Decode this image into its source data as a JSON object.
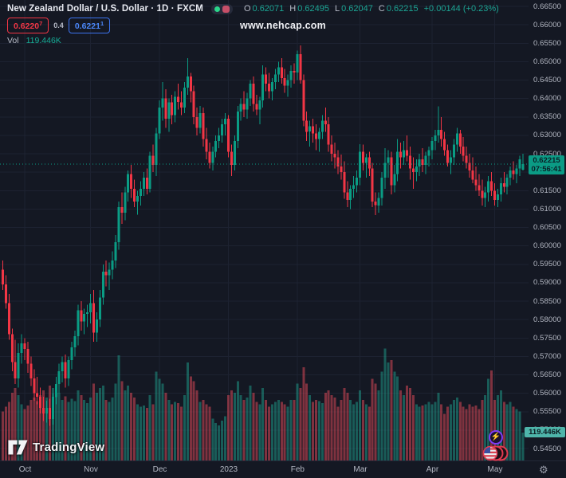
{
  "header": {
    "symbol_title": "New Zealand Dollar / U.S. Dollar · 1D · FXCM",
    "ohlc": {
      "o_label": "O",
      "o": "0.62071",
      "h_label": "H",
      "h": "0.62495",
      "l_label": "L",
      "l": "0.62047",
      "c_label": "C",
      "c": "0.62215",
      "change": "+0.00144 (+0.23%)"
    },
    "bid": {
      "main": "0.6220",
      "sup": "7"
    },
    "spread": "0.4",
    "ask": {
      "main": "0.6221",
      "sup": "1"
    },
    "vol_label": "Vol",
    "vol_value": "119.446K"
  },
  "watermark": "www.nehcap.com",
  "price_label": {
    "price": "0.62215",
    "countdown": "07:56:41"
  },
  "volume_label": "119.446K",
  "footer": {
    "logo": "TradingView",
    "gear_icon": "⚙"
  },
  "colors": {
    "up": "#0a9c84",
    "down": "#f23645",
    "vol_up": "rgba(32,167,146,0.48)",
    "vol_down": "rgba(244,80,94,0.48)",
    "grid": "#1d2231",
    "axis_text": "#b4b8c3",
    "bid": "#f23645",
    "ask": "#2962ff",
    "price_line": "#0a9c84"
  },
  "chart_data": {
    "type": "candlestick+volume",
    "title": "NZDUSD · 1D · FXCM",
    "legend": [
      "price",
      "volume"
    ],
    "price_axis": {
      "top": 0.665,
      "bottom": 0.545,
      "step": 0.005,
      "decimals": 5
    },
    "current_price": 0.62215,
    "current_volume_k": 119.446,
    "x_ticks": [
      {
        "label": "Oct",
        "index": 7
      },
      {
        "label": "Nov",
        "index": 28
      },
      {
        "label": "Dec",
        "index": 50
      },
      {
        "label": "2023",
        "index": 72
      },
      {
        "label": "Feb",
        "index": 94
      },
      {
        "label": "Mar",
        "index": 114
      },
      {
        "label": "Apr",
        "index": 137
      },
      {
        "label": "May",
        "index": 157
      }
    ],
    "candles_format": [
      "open",
      "high",
      "low",
      "close",
      "volume_k"
    ],
    "candles": [
      [
        0.5935,
        0.596,
        0.588,
        0.5895,
        210
      ],
      [
        0.5895,
        0.592,
        0.583,
        0.5845,
        230
      ],
      [
        0.5845,
        0.587,
        0.5745,
        0.576,
        250
      ],
      [
        0.576,
        0.5775,
        0.566,
        0.5685,
        290
      ],
      [
        0.5685,
        0.5745,
        0.5625,
        0.564,
        310
      ],
      [
        0.564,
        0.5735,
        0.5615,
        0.571,
        280
      ],
      [
        0.571,
        0.576,
        0.568,
        0.5735,
        240
      ],
      [
        0.5735,
        0.575,
        0.569,
        0.572,
        220
      ],
      [
        0.572,
        0.574,
        0.5655,
        0.568,
        235
      ],
      [
        0.568,
        0.57,
        0.562,
        0.564,
        260
      ],
      [
        0.564,
        0.5665,
        0.558,
        0.56,
        270
      ],
      [
        0.56,
        0.5645,
        0.557,
        0.559,
        255
      ],
      [
        0.559,
        0.5615,
        0.5545,
        0.556,
        280
      ],
      [
        0.556,
        0.559,
        0.5525,
        0.5545,
        300
      ],
      [
        0.5545,
        0.558,
        0.552,
        0.556,
        270
      ],
      [
        0.556,
        0.5585,
        0.5512,
        0.553,
        320
      ],
      [
        0.553,
        0.56,
        0.5515,
        0.559,
        310
      ],
      [
        0.559,
        0.5645,
        0.557,
        0.5625,
        280
      ],
      [
        0.5625,
        0.568,
        0.56,
        0.566,
        290
      ],
      [
        0.566,
        0.57,
        0.563,
        0.5685,
        260
      ],
      [
        0.5685,
        0.5705,
        0.5615,
        0.564,
        275
      ],
      [
        0.564,
        0.57,
        0.562,
        0.569,
        250
      ],
      [
        0.569,
        0.574,
        0.5665,
        0.5725,
        265
      ],
      [
        0.5725,
        0.577,
        0.57,
        0.5755,
        255
      ],
      [
        0.5755,
        0.584,
        0.573,
        0.5825,
        300
      ],
      [
        0.5825,
        0.585,
        0.577,
        0.5795,
        280
      ],
      [
        0.5795,
        0.583,
        0.576,
        0.5815,
        260
      ],
      [
        0.5815,
        0.584,
        0.578,
        0.582,
        245
      ],
      [
        0.582,
        0.587,
        0.579,
        0.5845,
        270
      ],
      [
        0.5845,
        0.588,
        0.574,
        0.5765,
        330
      ],
      [
        0.5765,
        0.582,
        0.574,
        0.58,
        290
      ],
      [
        0.58,
        0.588,
        0.578,
        0.586,
        310
      ],
      [
        0.586,
        0.595,
        0.584,
        0.593,
        320
      ],
      [
        0.593,
        0.596,
        0.589,
        0.592,
        260
      ],
      [
        0.592,
        0.5955,
        0.588,
        0.5935,
        250
      ],
      [
        0.5935,
        0.5985,
        0.591,
        0.596,
        270
      ],
      [
        0.596,
        0.603,
        0.594,
        0.601,
        330
      ],
      [
        0.601,
        0.612,
        0.599,
        0.6105,
        450
      ],
      [
        0.6105,
        0.6145,
        0.606,
        0.609,
        340
      ],
      [
        0.609,
        0.616,
        0.607,
        0.6145,
        300
      ],
      [
        0.6145,
        0.6205,
        0.612,
        0.6195,
        320
      ],
      [
        0.6195,
        0.622,
        0.613,
        0.6155,
        290
      ],
      [
        0.6155,
        0.618,
        0.6105,
        0.612,
        270
      ],
      [
        0.612,
        0.615,
        0.6085,
        0.6135,
        240
      ],
      [
        0.6135,
        0.6175,
        0.611,
        0.6155,
        230
      ],
      [
        0.6155,
        0.62,
        0.6135,
        0.6185,
        235
      ],
      [
        0.6185,
        0.621,
        0.614,
        0.6155,
        225
      ],
      [
        0.6155,
        0.6255,
        0.6145,
        0.6245,
        280
      ],
      [
        0.6245,
        0.6275,
        0.62,
        0.622,
        240
      ],
      [
        0.622,
        0.632,
        0.619,
        0.6305,
        380
      ],
      [
        0.6305,
        0.6395,
        0.629,
        0.6375,
        350
      ],
      [
        0.6375,
        0.6445,
        0.634,
        0.64,
        330
      ],
      [
        0.64,
        0.6425,
        0.632,
        0.6345,
        290
      ],
      [
        0.6345,
        0.64,
        0.631,
        0.639,
        260
      ],
      [
        0.639,
        0.641,
        0.633,
        0.6355,
        240
      ],
      [
        0.6355,
        0.642,
        0.6335,
        0.6405,
        250
      ],
      [
        0.6405,
        0.644,
        0.637,
        0.639,
        245
      ],
      [
        0.639,
        0.642,
        0.6355,
        0.6375,
        230
      ],
      [
        0.6375,
        0.6445,
        0.636,
        0.643,
        280
      ],
      [
        0.643,
        0.651,
        0.641,
        0.646,
        420
      ],
      [
        0.646,
        0.647,
        0.639,
        0.642,
        360
      ],
      [
        0.642,
        0.6435,
        0.633,
        0.635,
        340
      ],
      [
        0.635,
        0.6375,
        0.63,
        0.632,
        300
      ],
      [
        0.632,
        0.638,
        0.6305,
        0.636,
        250
      ],
      [
        0.636,
        0.6375,
        0.627,
        0.629,
        260
      ],
      [
        0.629,
        0.632,
        0.6235,
        0.6255,
        240
      ],
      [
        0.6255,
        0.628,
        0.621,
        0.6225,
        230
      ],
      [
        0.6225,
        0.627,
        0.6205,
        0.6255,
        180
      ],
      [
        0.6255,
        0.63,
        0.624,
        0.6285,
        160
      ],
      [
        0.6285,
        0.632,
        0.6265,
        0.63,
        150
      ],
      [
        0.63,
        0.6345,
        0.628,
        0.633,
        170
      ],
      [
        0.633,
        0.636,
        0.63,
        0.6345,
        190
      ],
      [
        0.6345,
        0.6355,
        0.624,
        0.6255,
        280
      ],
      [
        0.6255,
        0.6275,
        0.619,
        0.622,
        300
      ],
      [
        0.622,
        0.63,
        0.6205,
        0.6285,
        290
      ],
      [
        0.6285,
        0.638,
        0.6265,
        0.6365,
        340
      ],
      [
        0.6365,
        0.64,
        0.634,
        0.6385,
        280
      ],
      [
        0.6385,
        0.642,
        0.635,
        0.637,
        260
      ],
      [
        0.637,
        0.6415,
        0.6345,
        0.64,
        270
      ],
      [
        0.64,
        0.645,
        0.638,
        0.644,
        320
      ],
      [
        0.644,
        0.646,
        0.6365,
        0.6385,
        290
      ],
      [
        0.6385,
        0.641,
        0.6355,
        0.637,
        250
      ],
      [
        0.637,
        0.6405,
        0.633,
        0.6395,
        240
      ],
      [
        0.6395,
        0.649,
        0.6375,
        0.6465,
        310
      ],
      [
        0.6465,
        0.6485,
        0.642,
        0.644,
        260
      ],
      [
        0.644,
        0.647,
        0.64,
        0.642,
        230
      ],
      [
        0.642,
        0.6455,
        0.6395,
        0.6445,
        240
      ],
      [
        0.6445,
        0.648,
        0.6425,
        0.6465,
        250
      ],
      [
        0.6465,
        0.65,
        0.6445,
        0.6485,
        260
      ],
      [
        0.6485,
        0.651,
        0.644,
        0.6455,
        250
      ],
      [
        0.6455,
        0.648,
        0.6415,
        0.6435,
        240
      ],
      [
        0.6435,
        0.6465,
        0.6405,
        0.645,
        230
      ],
      [
        0.645,
        0.649,
        0.643,
        0.6475,
        260
      ],
      [
        0.6475,
        0.6495,
        0.644,
        0.647,
        260
      ],
      [
        0.647,
        0.653,
        0.645,
        0.652,
        330
      ],
      [
        0.652,
        0.6544,
        0.644,
        0.645,
        310
      ],
      [
        0.645,
        0.6465,
        0.6325,
        0.634,
        400
      ],
      [
        0.634,
        0.6365,
        0.6285,
        0.631,
        330
      ],
      [
        0.631,
        0.634,
        0.627,
        0.6325,
        280
      ],
      [
        0.6325,
        0.6345,
        0.628,
        0.6305,
        250
      ],
      [
        0.6305,
        0.633,
        0.626,
        0.629,
        260
      ],
      [
        0.629,
        0.632,
        0.6255,
        0.631,
        255
      ],
      [
        0.631,
        0.6355,
        0.629,
        0.634,
        245
      ],
      [
        0.634,
        0.6375,
        0.631,
        0.633,
        290
      ],
      [
        0.633,
        0.635,
        0.6255,
        0.6275,
        300
      ],
      [
        0.6275,
        0.63,
        0.623,
        0.625,
        280
      ],
      [
        0.625,
        0.628,
        0.621,
        0.624,
        270
      ],
      [
        0.624,
        0.626,
        0.6195,
        0.6215,
        230
      ],
      [
        0.6215,
        0.6248,
        0.618,
        0.62,
        260
      ],
      [
        0.62,
        0.623,
        0.6128,
        0.6145,
        310
      ],
      [
        0.6145,
        0.6175,
        0.6105,
        0.6125,
        290
      ],
      [
        0.6125,
        0.6165,
        0.61,
        0.6155,
        260
      ],
      [
        0.6155,
        0.619,
        0.613,
        0.6165,
        240
      ],
      [
        0.6165,
        0.6205,
        0.6145,
        0.6185,
        250
      ],
      [
        0.6185,
        0.6276,
        0.6165,
        0.6255,
        300
      ],
      [
        0.6255,
        0.6275,
        0.6205,
        0.6225,
        260
      ],
      [
        0.6225,
        0.625,
        0.6185,
        0.624,
        240
      ],
      [
        0.624,
        0.6255,
        0.619,
        0.621,
        230
      ],
      [
        0.621,
        0.6225,
        0.6105,
        0.612,
        350
      ],
      [
        0.612,
        0.6145,
        0.6084,
        0.611,
        330
      ],
      [
        0.611,
        0.6145,
        0.609,
        0.613,
        300
      ],
      [
        0.613,
        0.62,
        0.611,
        0.6185,
        380
      ],
      [
        0.6185,
        0.6265,
        0.6155,
        0.6225,
        480
      ],
      [
        0.6225,
        0.626,
        0.6185,
        0.624,
        420
      ],
      [
        0.624,
        0.6255,
        0.614,
        0.6165,
        430
      ],
      [
        0.6165,
        0.622,
        0.6145,
        0.6195,
        380
      ],
      [
        0.6195,
        0.629,
        0.6175,
        0.6255,
        360
      ],
      [
        0.6255,
        0.628,
        0.621,
        0.624,
        300
      ],
      [
        0.624,
        0.6285,
        0.622,
        0.626,
        280
      ],
      [
        0.626,
        0.63,
        0.623,
        0.6245,
        320
      ],
      [
        0.6245,
        0.627,
        0.618,
        0.621,
        310
      ],
      [
        0.621,
        0.624,
        0.6155,
        0.62,
        280
      ],
      [
        0.62,
        0.6235,
        0.6175,
        0.6215,
        240
      ],
      [
        0.6215,
        0.625,
        0.619,
        0.6235,
        230
      ],
      [
        0.6235,
        0.6265,
        0.62,
        0.622,
        235
      ],
      [
        0.622,
        0.6255,
        0.6195,
        0.6245,
        240
      ],
      [
        0.6245,
        0.627,
        0.6215,
        0.626,
        250
      ],
      [
        0.626,
        0.6295,
        0.6235,
        0.6285,
        240
      ],
      [
        0.6285,
        0.6315,
        0.626,
        0.63,
        250
      ],
      [
        0.63,
        0.6379,
        0.628,
        0.6315,
        290
      ],
      [
        0.6315,
        0.635,
        0.627,
        0.629,
        240
      ],
      [
        0.629,
        0.631,
        0.6245,
        0.626,
        200
      ],
      [
        0.626,
        0.6275,
        0.6215,
        0.6225,
        230
      ],
      [
        0.6225,
        0.626,
        0.6195,
        0.624,
        240
      ],
      [
        0.624,
        0.629,
        0.622,
        0.6275,
        260
      ],
      [
        0.6275,
        0.632,
        0.6255,
        0.6305,
        270
      ],
      [
        0.6305,
        0.6315,
        0.625,
        0.627,
        250
      ],
      [
        0.627,
        0.6295,
        0.623,
        0.6245,
        230
      ],
      [
        0.6245,
        0.627,
        0.621,
        0.6225,
        220
      ],
      [
        0.6225,
        0.625,
        0.6185,
        0.6205,
        240
      ],
      [
        0.6205,
        0.624,
        0.617,
        0.618,
        230
      ],
      [
        0.618,
        0.6215,
        0.615,
        0.6165,
        235
      ],
      [
        0.6165,
        0.6195,
        0.6135,
        0.615,
        220
      ],
      [
        0.615,
        0.618,
        0.611,
        0.613,
        260
      ],
      [
        0.613,
        0.616,
        0.6105,
        0.6145,
        280
      ],
      [
        0.6145,
        0.619,
        0.612,
        0.6175,
        350
      ],
      [
        0.6175,
        0.62,
        0.6135,
        0.615,
        385
      ],
      [
        0.615,
        0.617,
        0.611,
        0.6125,
        260
      ],
      [
        0.6125,
        0.6155,
        0.6105,
        0.614,
        280
      ],
      [
        0.614,
        0.6185,
        0.612,
        0.617,
        300
      ],
      [
        0.617,
        0.62,
        0.6145,
        0.616,
        250
      ],
      [
        0.616,
        0.6195,
        0.614,
        0.6185,
        240
      ],
      [
        0.6185,
        0.6215,
        0.6165,
        0.6205,
        250
      ],
      [
        0.6205,
        0.623,
        0.618,
        0.6195,
        230
      ],
      [
        0.6195,
        0.622,
        0.617,
        0.621,
        220
      ],
      [
        0.621,
        0.6245,
        0.619,
        0.6235,
        210
      ],
      [
        0.62071,
        0.62495,
        0.62047,
        0.62215,
        119.446
      ]
    ]
  }
}
